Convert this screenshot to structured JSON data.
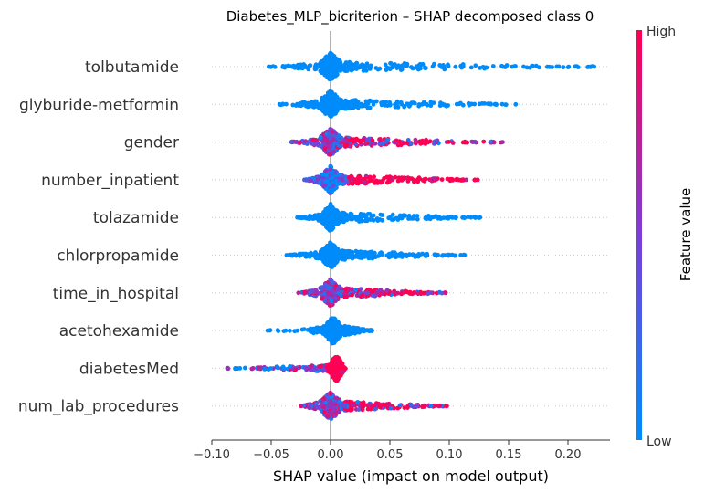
{
  "chart_data": {
    "type": "scatter",
    "subtype": "shap-beeswarm",
    "title": "Diabetes_MLP_bicriterion – SHAP decomposed class 0",
    "xlabel": "SHAP value (impact on model output)",
    "x_ticks": [
      -0.1,
      -0.05,
      0.0,
      0.05,
      0.1,
      0.15,
      0.2
    ],
    "x_tick_labels": [
      "−0.10",
      "−0.05",
      "0.00",
      "0.05",
      "0.10",
      "0.15",
      "0.20"
    ],
    "xlim": [
      -0.1,
      0.225
    ],
    "colorbar": {
      "label": "Feature value",
      "high_label": "High",
      "low_label": "Low",
      "low_color": "#008bfb",
      "high_color": "#ff0052"
    },
    "features": [
      {
        "name": "tolbutamide",
        "min": -0.052,
        "max": 0.222,
        "core": [
          -0.012,
          0.012
        ],
        "tail": "right",
        "color_mode": "low"
      },
      {
        "name": "glyburide-metformin",
        "min": -0.043,
        "max": 0.156,
        "core": [
          -0.012,
          0.012
        ],
        "tail": "right",
        "color_mode": "low"
      },
      {
        "name": "gender",
        "min": -0.033,
        "max": 0.145,
        "core": [
          -0.012,
          0.012
        ],
        "tail": "right",
        "color_mode": "mixed"
      },
      {
        "name": "number_inpatient",
        "min": -0.022,
        "max": 0.124,
        "core": [
          -0.01,
          0.01
        ],
        "tail": "right",
        "color_mode": "high_right"
      },
      {
        "name": "tolazamide",
        "min": -0.028,
        "max": 0.126,
        "core": [
          -0.01,
          0.01
        ],
        "tail": "right",
        "color_mode": "low"
      },
      {
        "name": "chlorpropamide",
        "min": -0.037,
        "max": 0.113,
        "core": [
          -0.01,
          0.01
        ],
        "tail": "right",
        "color_mode": "low"
      },
      {
        "name": "time_in_hospital",
        "min": -0.027,
        "max": 0.097,
        "core": [
          -0.012,
          0.012
        ],
        "tail": "right",
        "color_mode": "mixed"
      },
      {
        "name": "acetohexamide",
        "min": -0.053,
        "max": 0.035,
        "core": [
          -0.008,
          0.012
        ],
        "tail": "both",
        "color_mode": "low"
      },
      {
        "name": "diabetesMed",
        "min": -0.087,
        "max": 0.036,
        "core": [
          -0.002,
          0.012
        ],
        "tail": "left",
        "color_mode": "high_core"
      },
      {
        "name": "num_lab_procedures",
        "min": -0.025,
        "max": 0.098,
        "core": [
          -0.012,
          0.012
        ],
        "tail": "right",
        "color_mode": "mixed"
      }
    ]
  }
}
